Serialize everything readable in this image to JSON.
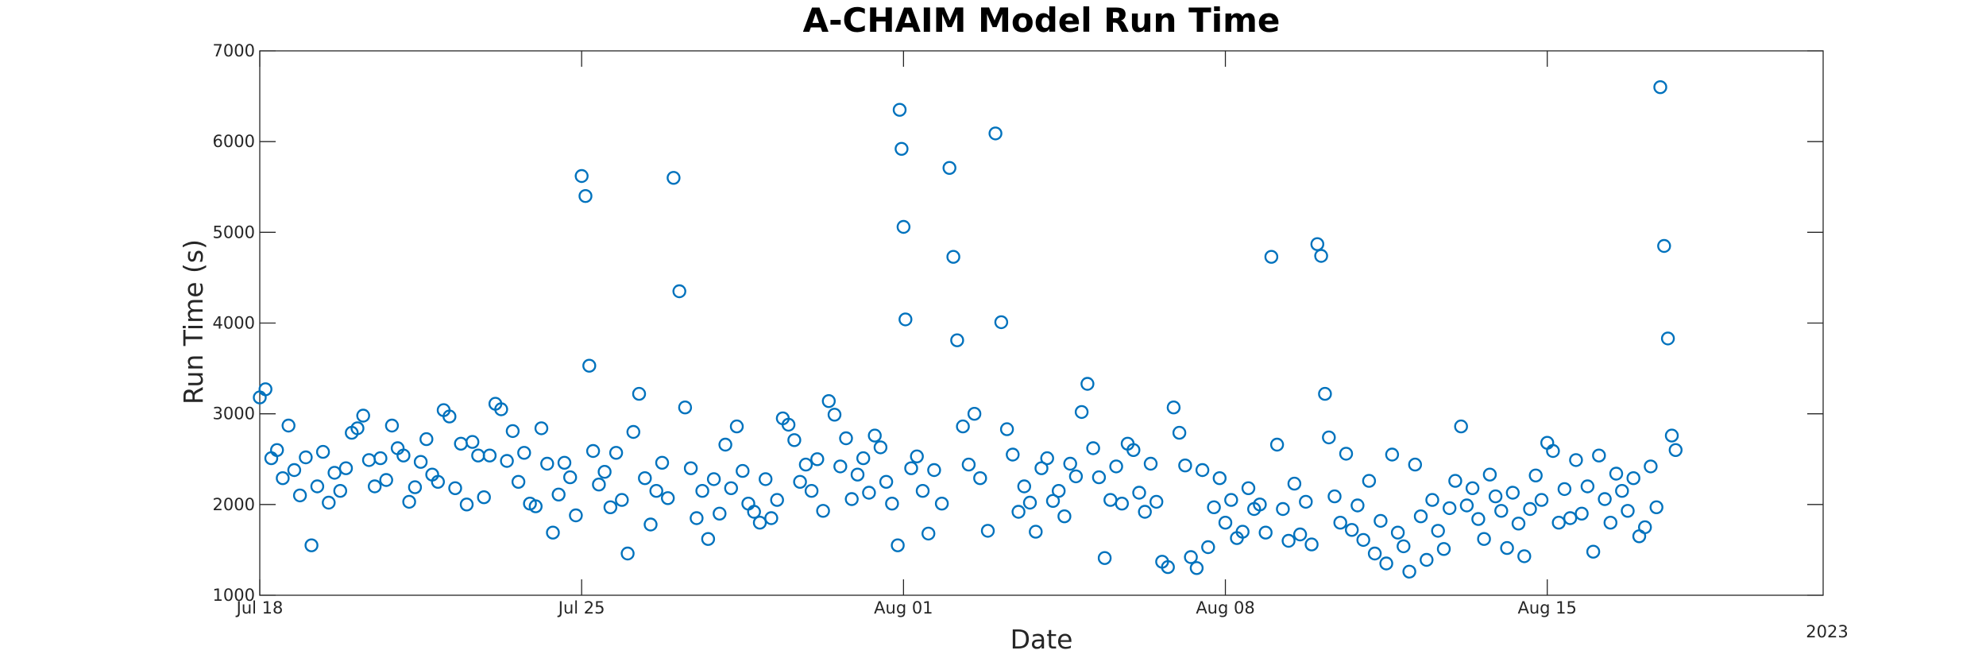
{
  "chart_data": {
    "type": "scatter",
    "title": "A-CHAIM Model Run Time",
    "xlabel": "Date",
    "ylabel": "Run Time (s)",
    "x_type": "date",
    "xlim": [
      "2023-07-18",
      "2023-08-21"
    ],
    "ylim": [
      1000,
      7000
    ],
    "x_ticks": [
      {
        "date": "2023-07-18",
        "label": "Jul 18"
      },
      {
        "date": "2023-07-25",
        "label": "Jul 25"
      },
      {
        "date": "2023-08-01",
        "label": "Aug 01"
      },
      {
        "date": "2023-08-08",
        "label": "Aug 08"
      },
      {
        "date": "2023-08-15",
        "label": "Aug 15"
      }
    ],
    "x_secondary_label": "2023",
    "y_ticks": [
      1000,
      2000,
      3000,
      4000,
      5000,
      6000,
      7000
    ],
    "grid": false,
    "marker": "open-circle",
    "color": "#0072BD",
    "series": [
      {
        "points": [
          [
            "2023-07-18T00:00",
            3180
          ],
          [
            "2023-07-18T03:00",
            3270
          ],
          [
            "2023-07-18T06:00",
            2510
          ],
          [
            "2023-07-18T09:00",
            2600
          ],
          [
            "2023-07-18T12:00",
            2290
          ],
          [
            "2023-07-18T15:00",
            2870
          ],
          [
            "2023-07-18T18:00",
            2380
          ],
          [
            "2023-07-18T21:00",
            2100
          ],
          [
            "2023-07-19T00:00",
            2520
          ],
          [
            "2023-07-19T03:00",
            1550
          ],
          [
            "2023-07-19T06:00",
            2200
          ],
          [
            "2023-07-19T09:00",
            2580
          ],
          [
            "2023-07-19T12:00",
            2020
          ],
          [
            "2023-07-19T15:00",
            2350
          ],
          [
            "2023-07-19T18:00",
            2150
          ],
          [
            "2023-07-19T21:00",
            2400
          ],
          [
            "2023-07-20T00:00",
            2790
          ],
          [
            "2023-07-20T03:00",
            2840
          ],
          [
            "2023-07-20T06:00",
            2980
          ],
          [
            "2023-07-20T09:00",
            2490
          ],
          [
            "2023-07-20T12:00",
            2200
          ],
          [
            "2023-07-20T15:00",
            2510
          ],
          [
            "2023-07-20T18:00",
            2270
          ],
          [
            "2023-07-20T21:00",
            2870
          ],
          [
            "2023-07-21T00:00",
            2620
          ],
          [
            "2023-07-21T03:00",
            2540
          ],
          [
            "2023-07-21T06:00",
            2030
          ],
          [
            "2023-07-21T09:00",
            2190
          ],
          [
            "2023-07-21T12:00",
            2470
          ],
          [
            "2023-07-21T15:00",
            2720
          ],
          [
            "2023-07-21T18:00",
            2330
          ],
          [
            "2023-07-21T21:00",
            2250
          ],
          [
            "2023-07-22T00:00",
            3040
          ],
          [
            "2023-07-22T03:00",
            2970
          ],
          [
            "2023-07-22T06:00",
            2180
          ],
          [
            "2023-07-22T09:00",
            2670
          ],
          [
            "2023-07-22T12:00",
            2000
          ],
          [
            "2023-07-22T15:00",
            2690
          ],
          [
            "2023-07-22T18:00",
            2540
          ],
          [
            "2023-07-22T21:00",
            2080
          ],
          [
            "2023-07-23T00:00",
            2540
          ],
          [
            "2023-07-23T03:00",
            3110
          ],
          [
            "2023-07-23T06:00",
            3050
          ],
          [
            "2023-07-23T09:00",
            2480
          ],
          [
            "2023-07-23T12:00",
            2810
          ],
          [
            "2023-07-23T15:00",
            2250
          ],
          [
            "2023-07-23T18:00",
            2570
          ],
          [
            "2023-07-23T21:00",
            2010
          ],
          [
            "2023-07-24T00:00",
            1980
          ],
          [
            "2023-07-24T03:00",
            2840
          ],
          [
            "2023-07-24T06:00",
            2450
          ],
          [
            "2023-07-24T09:00",
            1690
          ],
          [
            "2023-07-24T12:00",
            2110
          ],
          [
            "2023-07-24T15:00",
            2460
          ],
          [
            "2023-07-24T18:00",
            2300
          ],
          [
            "2023-07-24T21:00",
            1880
          ],
          [
            "2023-07-25T00:00",
            5620
          ],
          [
            "2023-07-25T02:00",
            5400
          ],
          [
            "2023-07-25T04:00",
            3530
          ],
          [
            "2023-07-25T06:00",
            2590
          ],
          [
            "2023-07-25T09:00",
            2220
          ],
          [
            "2023-07-25T12:00",
            2360
          ],
          [
            "2023-07-25T15:00",
            1970
          ],
          [
            "2023-07-25T18:00",
            2570
          ],
          [
            "2023-07-25T21:00",
            2050
          ],
          [
            "2023-07-26T00:00",
            1460
          ],
          [
            "2023-07-26T03:00",
            2800
          ],
          [
            "2023-07-26T06:00",
            3220
          ],
          [
            "2023-07-26T09:00",
            2290
          ],
          [
            "2023-07-26T12:00",
            1780
          ],
          [
            "2023-07-26T15:00",
            2150
          ],
          [
            "2023-07-26T18:00",
            2460
          ],
          [
            "2023-07-26T21:00",
            2070
          ],
          [
            "2023-07-27T00:00",
            5600
          ],
          [
            "2023-07-27T03:00",
            4350
          ],
          [
            "2023-07-27T06:00",
            3070
          ],
          [
            "2023-07-27T09:00",
            2400
          ],
          [
            "2023-07-27T12:00",
            1850
          ],
          [
            "2023-07-27T15:00",
            2150
          ],
          [
            "2023-07-27T18:00",
            1620
          ],
          [
            "2023-07-27T21:00",
            2280
          ],
          [
            "2023-07-28T00:00",
            1900
          ],
          [
            "2023-07-28T03:00",
            2660
          ],
          [
            "2023-07-28T06:00",
            2180
          ],
          [
            "2023-07-28T09:00",
            2860
          ],
          [
            "2023-07-28T12:00",
            2370
          ],
          [
            "2023-07-28T15:00",
            2010
          ],
          [
            "2023-07-28T18:00",
            1920
          ],
          [
            "2023-07-28T21:00",
            1800
          ],
          [
            "2023-07-29T00:00",
            2280
          ],
          [
            "2023-07-29T03:00",
            1850
          ],
          [
            "2023-07-29T06:00",
            2050
          ],
          [
            "2023-07-29T09:00",
            2950
          ],
          [
            "2023-07-29T12:00",
            2880
          ],
          [
            "2023-07-29T15:00",
            2710
          ],
          [
            "2023-07-29T18:00",
            2250
          ],
          [
            "2023-07-29T21:00",
            2440
          ],
          [
            "2023-07-30T00:00",
            2150
          ],
          [
            "2023-07-30T03:00",
            2500
          ],
          [
            "2023-07-30T06:00",
            1930
          ],
          [
            "2023-07-30T09:00",
            3140
          ],
          [
            "2023-07-30T12:00",
            2990
          ],
          [
            "2023-07-30T15:00",
            2420
          ],
          [
            "2023-07-30T18:00",
            2730
          ],
          [
            "2023-07-30T21:00",
            2060
          ],
          [
            "2023-07-31T00:00",
            2330
          ],
          [
            "2023-07-31T03:00",
            2510
          ],
          [
            "2023-07-31T06:00",
            2130
          ],
          [
            "2023-07-31T09:00",
            2760
          ],
          [
            "2023-07-31T12:00",
            2630
          ],
          [
            "2023-07-31T15:00",
            2250
          ],
          [
            "2023-07-31T18:00",
            2010
          ],
          [
            "2023-07-31T21:00",
            1550
          ],
          [
            "2023-07-31T22:00",
            6350
          ],
          [
            "2023-07-31T23:00",
            5920
          ],
          [
            "2023-08-01T00:00",
            5060
          ],
          [
            "2023-08-01T01:00",
            4040
          ],
          [
            "2023-08-01T04:00",
            2400
          ],
          [
            "2023-08-01T07:00",
            2530
          ],
          [
            "2023-08-01T10:00",
            2150
          ],
          [
            "2023-08-01T13:00",
            1680
          ],
          [
            "2023-08-01T16:00",
            2380
          ],
          [
            "2023-08-01T20:00",
            2010
          ],
          [
            "2023-08-02T00:00",
            5710
          ],
          [
            "2023-08-02T02:00",
            4730
          ],
          [
            "2023-08-02T04:00",
            3810
          ],
          [
            "2023-08-02T07:00",
            2860
          ],
          [
            "2023-08-02T10:00",
            2440
          ],
          [
            "2023-08-02T13:00",
            3000
          ],
          [
            "2023-08-02T16:00",
            2290
          ],
          [
            "2023-08-02T20:00",
            1710
          ],
          [
            "2023-08-03T00:00",
            6090
          ],
          [
            "2023-08-03T03:00",
            4010
          ],
          [
            "2023-08-03T06:00",
            2830
          ],
          [
            "2023-08-03T09:00",
            2550
          ],
          [
            "2023-08-03T12:00",
            1920
          ],
          [
            "2023-08-03T15:00",
            2200
          ],
          [
            "2023-08-03T18:00",
            2020
          ],
          [
            "2023-08-03T21:00",
            1700
          ],
          [
            "2023-08-04T00:00",
            2400
          ],
          [
            "2023-08-04T03:00",
            2510
          ],
          [
            "2023-08-04T06:00",
            2040
          ],
          [
            "2023-08-04T09:00",
            2150
          ],
          [
            "2023-08-04T12:00",
            1870
          ],
          [
            "2023-08-04T15:00",
            2450
          ],
          [
            "2023-08-04T18:00",
            2310
          ],
          [
            "2023-08-04T21:00",
            3020
          ],
          [
            "2023-08-05T00:00",
            3330
          ],
          [
            "2023-08-05T03:00",
            2620
          ],
          [
            "2023-08-05T06:00",
            2300
          ],
          [
            "2023-08-05T09:00",
            1410
          ],
          [
            "2023-08-05T12:00",
            2050
          ],
          [
            "2023-08-05T15:00",
            2420
          ],
          [
            "2023-08-05T18:00",
            2010
          ],
          [
            "2023-08-05T21:00",
            2670
          ],
          [
            "2023-08-06T00:00",
            2600
          ],
          [
            "2023-08-06T03:00",
            2130
          ],
          [
            "2023-08-06T06:00",
            1920
          ],
          [
            "2023-08-06T09:00",
            2450
          ],
          [
            "2023-08-06T12:00",
            2030
          ],
          [
            "2023-08-06T15:00",
            1370
          ],
          [
            "2023-08-06T18:00",
            1310
          ],
          [
            "2023-08-06T21:00",
            3070
          ],
          [
            "2023-08-07T00:00",
            2790
          ],
          [
            "2023-08-07T03:00",
            2430
          ],
          [
            "2023-08-07T06:00",
            1420
          ],
          [
            "2023-08-07T09:00",
            1300
          ],
          [
            "2023-08-07T12:00",
            2380
          ],
          [
            "2023-08-07T15:00",
            1530
          ],
          [
            "2023-08-07T18:00",
            1970
          ],
          [
            "2023-08-07T21:00",
            2290
          ],
          [
            "2023-08-08T00:00",
            1800
          ],
          [
            "2023-08-08T03:00",
            2050
          ],
          [
            "2023-08-08T06:00",
            1630
          ],
          [
            "2023-08-08T09:00",
            1700
          ],
          [
            "2023-08-08T12:00",
            2180
          ],
          [
            "2023-08-08T15:00",
            1950
          ],
          [
            "2023-08-08T18:00",
            2000
          ],
          [
            "2023-08-08T21:00",
            1690
          ],
          [
            "2023-08-09T00:00",
            4730
          ],
          [
            "2023-08-09T03:00",
            2660
          ],
          [
            "2023-08-09T06:00",
            1950
          ],
          [
            "2023-08-09T09:00",
            1600
          ],
          [
            "2023-08-09T12:00",
            2230
          ],
          [
            "2023-08-09T15:00",
            1670
          ],
          [
            "2023-08-09T18:00",
            2030
          ],
          [
            "2023-08-09T21:00",
            1560
          ],
          [
            "2023-08-10T00:00",
            4870
          ],
          [
            "2023-08-10T02:00",
            4740
          ],
          [
            "2023-08-10T04:00",
            3220
          ],
          [
            "2023-08-10T06:00",
            2740
          ],
          [
            "2023-08-10T09:00",
            2090
          ],
          [
            "2023-08-10T12:00",
            1800
          ],
          [
            "2023-08-10T15:00",
            2560
          ],
          [
            "2023-08-10T18:00",
            1720
          ],
          [
            "2023-08-10T21:00",
            1990
          ],
          [
            "2023-08-11T00:00",
            1610
          ],
          [
            "2023-08-11T03:00",
            2260
          ],
          [
            "2023-08-11T06:00",
            1460
          ],
          [
            "2023-08-11T09:00",
            1820
          ],
          [
            "2023-08-11T12:00",
            1350
          ],
          [
            "2023-08-11T15:00",
            2550
          ],
          [
            "2023-08-11T18:00",
            1690
          ],
          [
            "2023-08-11T21:00",
            1540
          ],
          [
            "2023-08-12T00:00",
            1260
          ],
          [
            "2023-08-12T03:00",
            2440
          ],
          [
            "2023-08-12T06:00",
            1870
          ],
          [
            "2023-08-12T09:00",
            1390
          ],
          [
            "2023-08-12T12:00",
            2050
          ],
          [
            "2023-08-12T15:00",
            1710
          ],
          [
            "2023-08-12T18:00",
            1510
          ],
          [
            "2023-08-12T21:00",
            1960
          ],
          [
            "2023-08-13T00:00",
            2260
          ],
          [
            "2023-08-13T03:00",
            2860
          ],
          [
            "2023-08-13T06:00",
            1990
          ],
          [
            "2023-08-13T09:00",
            2180
          ],
          [
            "2023-08-13T12:00",
            1840
          ],
          [
            "2023-08-13T15:00",
            1620
          ],
          [
            "2023-08-13T18:00",
            2330
          ],
          [
            "2023-08-13T21:00",
            2090
          ],
          [
            "2023-08-14T00:00",
            1930
          ],
          [
            "2023-08-14T03:00",
            1520
          ],
          [
            "2023-08-14T06:00",
            2130
          ],
          [
            "2023-08-14T09:00",
            1790
          ],
          [
            "2023-08-14T12:00",
            1430
          ],
          [
            "2023-08-14T15:00",
            1950
          ],
          [
            "2023-08-14T18:00",
            2320
          ],
          [
            "2023-08-14T21:00",
            2050
          ],
          [
            "2023-08-15T00:00",
            2680
          ],
          [
            "2023-08-15T03:00",
            2590
          ],
          [
            "2023-08-15T06:00",
            1800
          ],
          [
            "2023-08-15T09:00",
            2170
          ],
          [
            "2023-08-15T12:00",
            1850
          ],
          [
            "2023-08-15T15:00",
            2490
          ],
          [
            "2023-08-15T18:00",
            1900
          ],
          [
            "2023-08-15T21:00",
            2200
          ],
          [
            "2023-08-16T00:00",
            1480
          ],
          [
            "2023-08-16T03:00",
            2540
          ],
          [
            "2023-08-16T06:00",
            2060
          ],
          [
            "2023-08-16T09:00",
            1800
          ],
          [
            "2023-08-16T12:00",
            2340
          ],
          [
            "2023-08-16T15:00",
            2150
          ],
          [
            "2023-08-16T18:00",
            1930
          ],
          [
            "2023-08-16T21:00",
            2290
          ],
          [
            "2023-08-17T00:00",
            1650
          ],
          [
            "2023-08-17T03:00",
            1750
          ],
          [
            "2023-08-17T06:00",
            2420
          ],
          [
            "2023-08-17T09:00",
            1970
          ],
          [
            "2023-08-17T11:00",
            6600
          ],
          [
            "2023-08-17T13:00",
            4850
          ],
          [
            "2023-08-17T15:00",
            3830
          ],
          [
            "2023-08-17T17:00",
            2760
          ],
          [
            "2023-08-17T19:00",
            2600
          ]
        ]
      }
    ]
  }
}
